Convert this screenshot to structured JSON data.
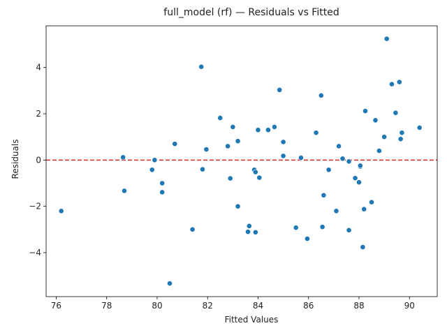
{
  "chart_data": {
    "type": "scatter",
    "title": "full_model (rf) — Residuals vs Fitted",
    "xlabel": "Fitted Values",
    "ylabel": "Residuals",
    "xlim": [
      75.6,
      91.1
    ],
    "ylim": [
      -5.9,
      5.8
    ],
    "xticks": [
      76,
      78,
      80,
      82,
      84,
      86,
      88,
      90
    ],
    "yticks": [
      -4,
      -2,
      0,
      2,
      4
    ],
    "grid": false,
    "reference_line": {
      "y": 0,
      "style": "dashed",
      "color": "#d62728"
    },
    "point_color": "#1f77b4",
    "points": [
      {
        "x": 76.2,
        "y": -2.2
      },
      {
        "x": 78.65,
        "y": 0.12
      },
      {
        "x": 78.7,
        "y": -1.33
      },
      {
        "x": 79.8,
        "y": -0.42
      },
      {
        "x": 79.9,
        "y": 0.0
      },
      {
        "x": 80.2,
        "y": -1.0
      },
      {
        "x": 80.2,
        "y": -1.39
      },
      {
        "x": 80.5,
        "y": -5.33
      },
      {
        "x": 80.7,
        "y": 0.7
      },
      {
        "x": 81.4,
        "y": -3.0
      },
      {
        "x": 81.75,
        "y": 4.03
      },
      {
        "x": 81.8,
        "y": -0.4
      },
      {
        "x": 81.95,
        "y": 0.46
      },
      {
        "x": 82.5,
        "y": 1.82
      },
      {
        "x": 82.8,
        "y": 0.6
      },
      {
        "x": 82.9,
        "y": -0.79
      },
      {
        "x": 83.0,
        "y": 1.43
      },
      {
        "x": 83.2,
        "y": 0.82
      },
      {
        "x": 83.2,
        "y": -2.0
      },
      {
        "x": 83.6,
        "y": -3.1
      },
      {
        "x": 83.65,
        "y": -2.85
      },
      {
        "x": 83.85,
        "y": -0.42
      },
      {
        "x": 83.9,
        "y": -0.52
      },
      {
        "x": 83.9,
        "y": -3.12
      },
      {
        "x": 84.0,
        "y": 1.3
      },
      {
        "x": 84.05,
        "y": -0.76
      },
      {
        "x": 84.4,
        "y": 1.3
      },
      {
        "x": 84.65,
        "y": 1.43
      },
      {
        "x": 84.85,
        "y": 3.03
      },
      {
        "x": 85.0,
        "y": 0.78
      },
      {
        "x": 85.0,
        "y": 0.18
      },
      {
        "x": 85.5,
        "y": -2.92
      },
      {
        "x": 85.7,
        "y": 0.1
      },
      {
        "x": 85.95,
        "y": -3.4
      },
      {
        "x": 86.3,
        "y": 1.18
      },
      {
        "x": 86.5,
        "y": 2.79
      },
      {
        "x": 86.55,
        "y": -2.89
      },
      {
        "x": 86.6,
        "y": -1.52
      },
      {
        "x": 86.8,
        "y": -0.42
      },
      {
        "x": 87.1,
        "y": -2.2
      },
      {
        "x": 87.2,
        "y": 0.6
      },
      {
        "x": 87.35,
        "y": 0.06
      },
      {
        "x": 87.6,
        "y": -0.06
      },
      {
        "x": 87.6,
        "y": -3.03
      },
      {
        "x": 87.85,
        "y": -0.78
      },
      {
        "x": 88.0,
        "y": -0.96
      },
      {
        "x": 88.05,
        "y": -0.28
      },
      {
        "x": 88.05,
        "y": -0.24
      },
      {
        "x": 88.15,
        "y": -3.76
      },
      {
        "x": 88.2,
        "y": -2.12
      },
      {
        "x": 88.25,
        "y": 2.12
      },
      {
        "x": 88.5,
        "y": -1.82
      },
      {
        "x": 88.65,
        "y": 1.72
      },
      {
        "x": 88.8,
        "y": 0.4
      },
      {
        "x": 89.0,
        "y": 1.0
      },
      {
        "x": 89.1,
        "y": 5.24
      },
      {
        "x": 89.3,
        "y": 3.28
      },
      {
        "x": 89.45,
        "y": 2.04
      },
      {
        "x": 89.6,
        "y": 3.37
      },
      {
        "x": 89.65,
        "y": 0.91
      },
      {
        "x": 89.7,
        "y": 1.18
      },
      {
        "x": 90.4,
        "y": 1.4
      }
    ]
  }
}
